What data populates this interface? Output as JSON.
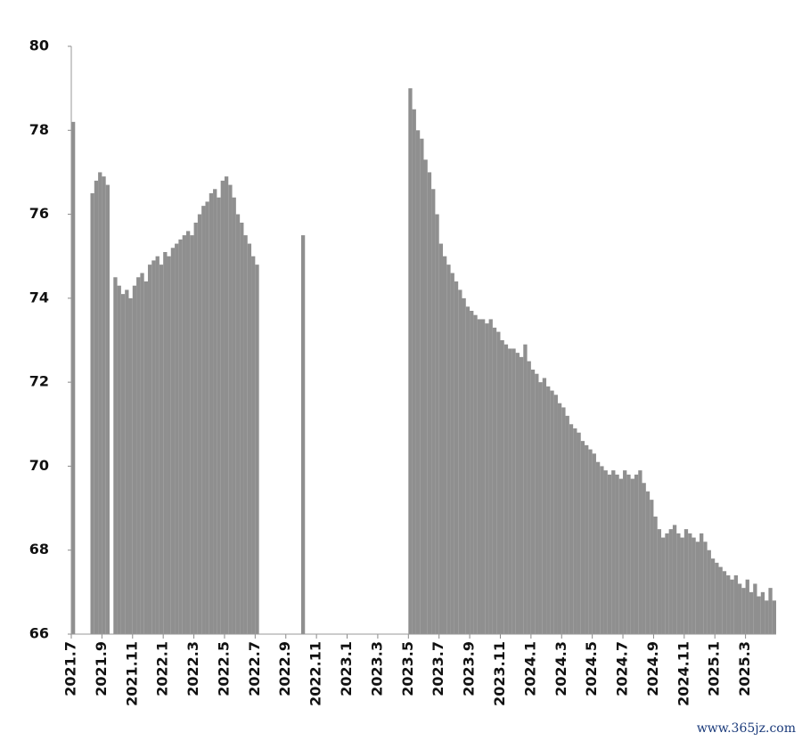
{
  "chart_data": {
    "type": "bar",
    "color": "#8f8f8f",
    "watermark": "www.365jz.com",
    "ylim": [
      66,
      80
    ],
    "yticks": [
      66,
      68,
      70,
      72,
      74,
      76,
      78,
      80
    ],
    "categories": [
      "2021.7",
      null,
      null,
      null,
      null,
      null,
      null,
      null,
      "2021.9",
      null,
      null,
      null,
      null,
      null,
      null,
      null,
      "2021.11",
      null,
      null,
      null,
      null,
      null,
      null,
      null,
      "2022.1",
      null,
      null,
      null,
      null,
      null,
      null,
      null,
      "2022.3",
      null,
      null,
      null,
      null,
      null,
      null,
      null,
      "2022.5",
      null,
      null,
      null,
      null,
      null,
      null,
      null,
      "2022.7",
      null,
      null,
      null,
      null,
      null,
      null,
      null,
      "2022.9",
      null,
      null,
      null,
      null,
      null,
      null,
      null,
      "2022.11",
      null,
      null,
      null,
      null,
      null,
      null,
      null,
      "2023.1",
      null,
      null,
      null,
      null,
      null,
      null,
      null,
      "2023.3",
      null,
      null,
      null,
      null,
      null,
      null,
      null,
      "2023.5",
      null,
      null,
      null,
      null,
      null,
      null,
      null,
      "2023.7",
      null,
      null,
      null,
      null,
      null,
      null,
      null,
      "2023.9",
      null,
      null,
      null,
      null,
      null,
      null,
      null,
      "2023.11",
      null,
      null,
      null,
      null,
      null,
      null,
      null,
      "2024.1",
      null,
      null,
      null,
      null,
      null,
      null,
      null,
      "2024.3",
      null,
      null,
      null,
      null,
      null,
      null,
      null,
      "2024.5",
      null,
      null,
      null,
      null,
      null,
      null,
      null,
      "2024.7",
      null,
      null,
      null,
      null,
      null,
      null,
      null,
      "2024.9",
      null,
      null,
      null,
      null,
      null,
      null,
      null,
      "2024.11",
      null,
      null,
      null,
      null,
      null,
      null,
      null,
      "2025.1",
      null,
      null,
      null,
      null,
      null,
      null,
      null,
      "2025.3",
      null,
      null,
      null,
      null,
      null,
      null,
      null
    ],
    "values": [
      78.2,
      null,
      null,
      null,
      null,
      76.5,
      76.8,
      77.0,
      76.9,
      76.7,
      null,
      74.5,
      74.3,
      74.1,
      74.2,
      74.0,
      74.3,
      74.5,
      74.6,
      74.4,
      74.8,
      74.9,
      75.0,
      74.8,
      75.1,
      75.0,
      75.2,
      75.3,
      75.4,
      75.5,
      75.6,
      75.5,
      75.8,
      76.0,
      76.2,
      76.3,
      76.5,
      76.6,
      76.4,
      76.8,
      76.9,
      76.7,
      76.4,
      76.0,
      75.8,
      75.5,
      75.3,
      75.0,
      74.8,
      null,
      null,
      null,
      null,
      null,
      null,
      null,
      null,
      null,
      null,
      null,
      75.5,
      null,
      null,
      null,
      null,
      null,
      null,
      null,
      null,
      null,
      null,
      null,
      null,
      null,
      null,
      null,
      null,
      null,
      null,
      null,
      null,
      null,
      null,
      null,
      null,
      null,
      null,
      null,
      79.0,
      78.5,
      78.0,
      77.8,
      77.3,
      77.0,
      76.6,
      76.0,
      75.3,
      75.0,
      74.8,
      74.6,
      74.4,
      74.2,
      74.0,
      73.8,
      73.7,
      73.6,
      73.5,
      73.5,
      73.4,
      73.5,
      73.3,
      73.2,
      73.0,
      72.9,
      72.8,
      72.8,
      72.7,
      72.6,
      72.9,
      72.5,
      72.3,
      72.2,
      72.0,
      72.1,
      71.9,
      71.8,
      71.7,
      71.5,
      71.4,
      71.2,
      71.0,
      70.9,
      70.8,
      70.6,
      70.5,
      70.4,
      70.3,
      70.1,
      70.0,
      69.9,
      69.8,
      69.9,
      69.8,
      69.7,
      69.9,
      69.8,
      69.7,
      69.8,
      69.9,
      69.6,
      69.4,
      69.2,
      68.8,
      68.5,
      68.3,
      68.4,
      68.5,
      68.6,
      68.4,
      68.3,
      68.5,
      68.4,
      68.3,
      68.2,
      68.4,
      68.2,
      68.0,
      67.8,
      67.7,
      67.6,
      67.5,
      67.4,
      67.3,
      67.4,
      67.2,
      67.1,
      67.3,
      67.0,
      67.2,
      66.9,
      67.0,
      66.8,
      67.1,
      66.8
    ]
  }
}
